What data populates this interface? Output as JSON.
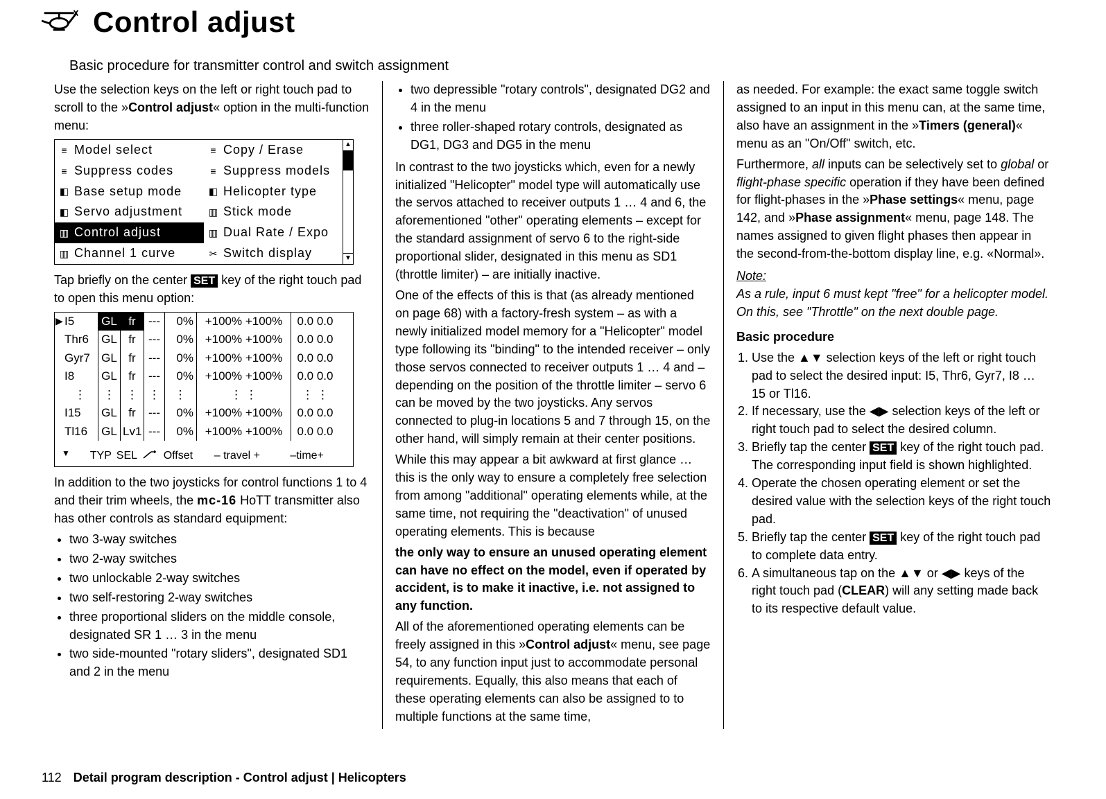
{
  "header": {
    "title": "Control adjust",
    "subtitle": "Basic procedure for transmitter control and switch assignment"
  },
  "col1": {
    "intro1a": "Use the selection keys on the left or right touch pad to scroll to the »",
    "intro1b": "Control adjust",
    "intro1c": "« option in the multi-function menu:",
    "menu_left": [
      "Model select",
      "Suppress codes",
      "Base setup mode",
      "Servo adjustment",
      "Control adjust",
      "Channel 1 curve"
    ],
    "menu_right": [
      "Copy / Erase",
      "Suppress models",
      "Helicopter type",
      "Stick mode",
      "Dual Rate / Expo",
      "Switch display"
    ],
    "menu_selected_index": 4,
    "tap1": "Tap briefly on the center ",
    "tap2": " key of the right touch pad to open this menu option:",
    "table_rows": [
      {
        "name": "I5",
        "gl": "GL",
        "fr": "fr",
        "dash": "---",
        "off": "0%",
        "trav": "+100% +100%",
        "time": "0.0 0.0",
        "cursor": true,
        "glsel": true,
        "frsel": true
      },
      {
        "name": "Thr6",
        "gl": "GL",
        "fr": "fr",
        "dash": "---",
        "off": "0%",
        "trav": "+100% +100%",
        "time": "0.0 0.0"
      },
      {
        "name": "Gyr7",
        "gl": "GL",
        "fr": "fr",
        "dash": "---",
        "off": "0%",
        "trav": "+100% +100%",
        "time": "0.0 0.0"
      },
      {
        "name": "I8",
        "gl": "GL",
        "fr": "fr",
        "dash": "---",
        "off": "0%",
        "trav": "+100% +100%",
        "time": "0.0 0.0"
      },
      {
        "name": "⋮",
        "gl": "⋮",
        "fr": "⋮",
        "dash": "⋮",
        "off": "⋮",
        "trav": "⋮      ⋮",
        "time": "⋮   ⋮",
        "dots": true
      },
      {
        "name": "I15",
        "gl": "GL",
        "fr": "fr",
        "dash": "---",
        "off": "0%",
        "trav": "+100% +100%",
        "time": "0.0 0.0"
      },
      {
        "name": "Tl16",
        "gl": "GL",
        "fr": "Lv1",
        "dash": "---",
        "off": "0%",
        "trav": "+100% +100%",
        "time": "0.0 0.0"
      }
    ],
    "footer_labels": {
      "typ": "TYP",
      "sel": "SEL",
      "off": "Offset",
      "trav": "– travel +",
      "time": "–time+"
    },
    "after_tbl_a": "In addition to the two joysticks for control functions 1 to 4 and their trim wheels, the ",
    "after_tbl_brand": "mc-16",
    "after_tbl_b": " HoTT transmitter also has other controls as standard equipment:",
    "equip": [
      "two 3-way switches",
      "two 2-way switches",
      "two unlockable 2-way switches",
      "two self-restoring 2-way switches",
      "three proportional sliders on the middle console, designated SR 1 … 3 in the menu",
      "two side-mounted \"rotary sliders\", designated SD1 and 2 in the menu"
    ]
  },
  "col2": {
    "bullets": [
      "two depressible \"rotary controls\", designated DG2 and 4 in the menu",
      "three roller-shaped rotary controls, designated as DG1, DG3 and DG5 in the menu"
    ],
    "p1": "In contrast to the two joysticks which, even for a newly initialized \"Helicopter\" model type will automatically use the servos attached to receiver outputs 1 … 4 and 6, the aforementioned \"other\" operating elements – except for the standard assignment of servo 6 to the right-side proportional slider, designated in this menu as SD1 (throttle limiter) – are initially inactive.",
    "p2": "One of the effects of this is that (as already mentioned on page 68) with a factory-fresh system – as with a newly initialized model memory for a \"Helicopter\" model type following its \"binding\" to the intended receiver –  only those servos connected to receiver outputs 1 … 4 and – depending on the position of the throttle limiter – servo 6 can be moved by the two joysticks. Any servos connected to plug-in locations 5 and 7 through 15, on the other hand, will simply remain at their center positions.",
    "p3": "While this may appear a bit awkward at first glance … this is the only way to ensure a completely free selection from among \"additional\" operating elements while, at the same time, not requiring the \"deactivation\" of unused operating elements. This is because",
    "bold": "the only way to ensure an unused operating element can have no effect on the model, even if operated by accident, is to make it inactive, i.e. not assigned to any function.",
    "p4a": "All of the aforementioned operating elements can be freely assigned in this »",
    "p4b": "Control adjust",
    "p4c": "« menu, see page 54, to any function input just to accommodate personal requirements. Equally, this also means that each of these operating elements can also be assigned to to multiple functions at the same time,"
  },
  "col3": {
    "p1a": "as needed. For example: the exact same toggle switch assigned to an input in this menu can, at the same time, also have an assignment in the »",
    "p1b": "Timers (general)",
    "p1c": "« menu as an \"On/Off\" switch, etc.",
    "p2a": "Furthermore, ",
    "p2i1": "all",
    "p2b": " inputs can be selectively set to ",
    "p2i2": "global",
    "p2c": " or ",
    "p2i3": "flight-phase specific",
    "p2d": " operation if they have been defined for flight-phases in the »",
    "p2e": "Phase settings",
    "p2f": "« menu, page 142, and »",
    "p2g": "Phase assignment",
    "p2h": "« menu, page 148. The names assigned to given flight phases then appear in the second-from-the-bottom display line, e.g. «Normal».",
    "note_label": "Note:",
    "note_body": "As a rule, input 6 must kept \"free\" for a helicopter model. On this, see \"Throttle\" on the next double page.",
    "proc_title": "Basic procedure",
    "steps": [
      "Use the ▲▼ selection keys of the left or right touch pad to select the desired input: I5, Thr6, Gyr7, I8 … 15 or Tl16.",
      "If necessary, use the ◀▶ selection keys of the left or right touch pad to select the desired column.",
      {
        "pre": "Briefly tap the center ",
        "post": " key of the right touch pad. The corresponding input field is shown highlighted."
      },
      "Operate the chosen operating element or set the desired value with the selection keys of the right touch pad.",
      {
        "pre": "Briefly tap the center ",
        "post": " key of the right touch pad to complete data entry."
      },
      {
        "pre": "A simultaneous tap on the ▲▼ or ◀▶ keys of the right touch pad (",
        "mid": "CLEAR",
        "post": ") will any setting made back to its respective default value."
      }
    ]
  },
  "footer": {
    "page": "112",
    "crumb": "Detail program description - Control adjust | Helicopters"
  },
  "set_label": "SET"
}
